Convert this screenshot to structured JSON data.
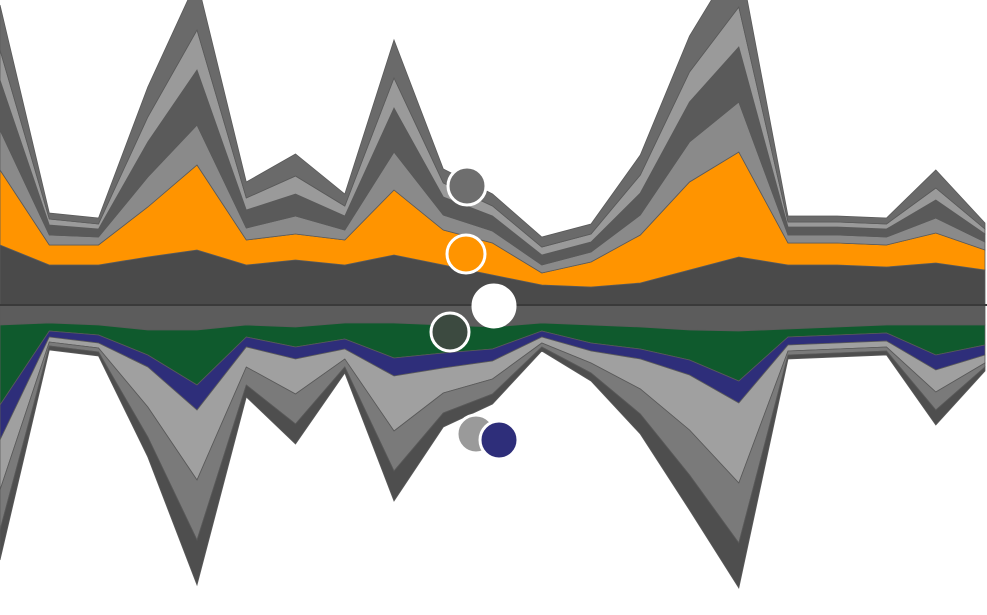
{
  "chart_data": {
    "type": "area",
    "layout": "mirrored-stream",
    "x": [
      0,
      1,
      2,
      3,
      4,
      5,
      6,
      7,
      8,
      9,
      10,
      11,
      12,
      13,
      14,
      15,
      16,
      17,
      18,
      19,
      20
    ],
    "top_series": [
      {
        "color": "#4a4a4a",
        "values": [
          60,
          40,
          40,
          48,
          55,
          40,
          45,
          40,
          50,
          40,
          30,
          20,
          18,
          22,
          35,
          48,
          40,
          40,
          38,
          42,
          35
        ]
      },
      {
        "color": "#ff9400",
        "values": [
          75,
          20,
          20,
          50,
          85,
          25,
          26,
          25,
          65,
          35,
          32,
          12,
          25,
          48,
          88,
          105,
          22,
          22,
          22,
          30,
          20
        ]
      },
      {
        "color": "#8a8a8a",
        "values": [
          40,
          10,
          8,
          30,
          40,
          12,
          18,
          10,
          38,
          15,
          12,
          8,
          10,
          20,
          40,
          50,
          8,
          8,
          8,
          15,
          8
        ]
      },
      {
        "color": "#5a5a5a",
        "values": [
          50,
          10,
          8,
          35,
          55,
          18,
          22,
          14,
          44,
          18,
          15,
          10,
          10,
          22,
          40,
          55,
          8,
          8,
          8,
          18,
          8
        ]
      },
      {
        "color": "#9a9a9a",
        "values": [
          30,
          6,
          5,
          25,
          40,
          12,
          18,
          10,
          30,
          14,
          10,
          8,
          8,
          18,
          30,
          40,
          5,
          5,
          5,
          12,
          5
        ]
      },
      {
        "color": "#6a6a6a",
        "values": [
          45,
          6,
          6,
          30,
          50,
          16,
          22,
          12,
          38,
          14,
          12,
          10,
          10,
          20,
          36,
          52,
          6,
          6,
          6,
          18,
          6
        ]
      }
    ],
    "bottom_series": [
      {
        "color": "#5c5c5c",
        "values": [
          20,
          18,
          20,
          25,
          25,
          20,
          22,
          18,
          18,
          20,
          22,
          18,
          20,
          22,
          25,
          26,
          24,
          22,
          20,
          20,
          20
        ]
      },
      {
        "color": "#0f5a2d",
        "values": [
          80,
          8,
          10,
          25,
          55,
          12,
          20,
          16,
          35,
          28,
          22,
          8,
          18,
          22,
          30,
          50,
          8,
          8,
          8,
          30,
          20
        ]
      },
      {
        "color": "#2e2e7a",
        "values": [
          35,
          6,
          8,
          12,
          25,
          10,
          12,
          10,
          18,
          15,
          12,
          6,
          8,
          10,
          15,
          22,
          8,
          8,
          8,
          15,
          10
        ]
      },
      {
        "color": "#a0a0a0",
        "values": [
          50,
          5,
          5,
          40,
          70,
          20,
          35,
          10,
          55,
          25,
          18,
          6,
          12,
          30,
          55,
          80,
          6,
          6,
          6,
          22,
          8
        ]
      },
      {
        "color": "#7a7a7a",
        "values": [
          40,
          4,
          4,
          30,
          60,
          18,
          30,
          8,
          40,
          20,
          15,
          4,
          10,
          25,
          45,
          60,
          4,
          4,
          4,
          18,
          4
        ]
      },
      {
        "color": "#4e4e4e",
        "values": [
          30,
          4,
          4,
          20,
          45,
          12,
          20,
          6,
          30,
          14,
          10,
          4,
          8,
          20,
          35,
          45,
          4,
          4,
          4,
          15,
          4
        ]
      }
    ],
    "markers": [
      {
        "color": "#6e6e6e",
        "stroke": "#ffffff"
      },
      {
        "color": "#ff9400",
        "stroke": "#ffffff"
      },
      {
        "color": "#ffffff",
        "stroke": "#ffffff"
      },
      {
        "color": "#3c4a40",
        "stroke": "#ffffff"
      },
      {
        "color": "#9a9a9a",
        "stroke": "#ffffff"
      },
      {
        "color": "#2e2e7a",
        "stroke": "#ffffff"
      }
    ],
    "grid": false
  }
}
